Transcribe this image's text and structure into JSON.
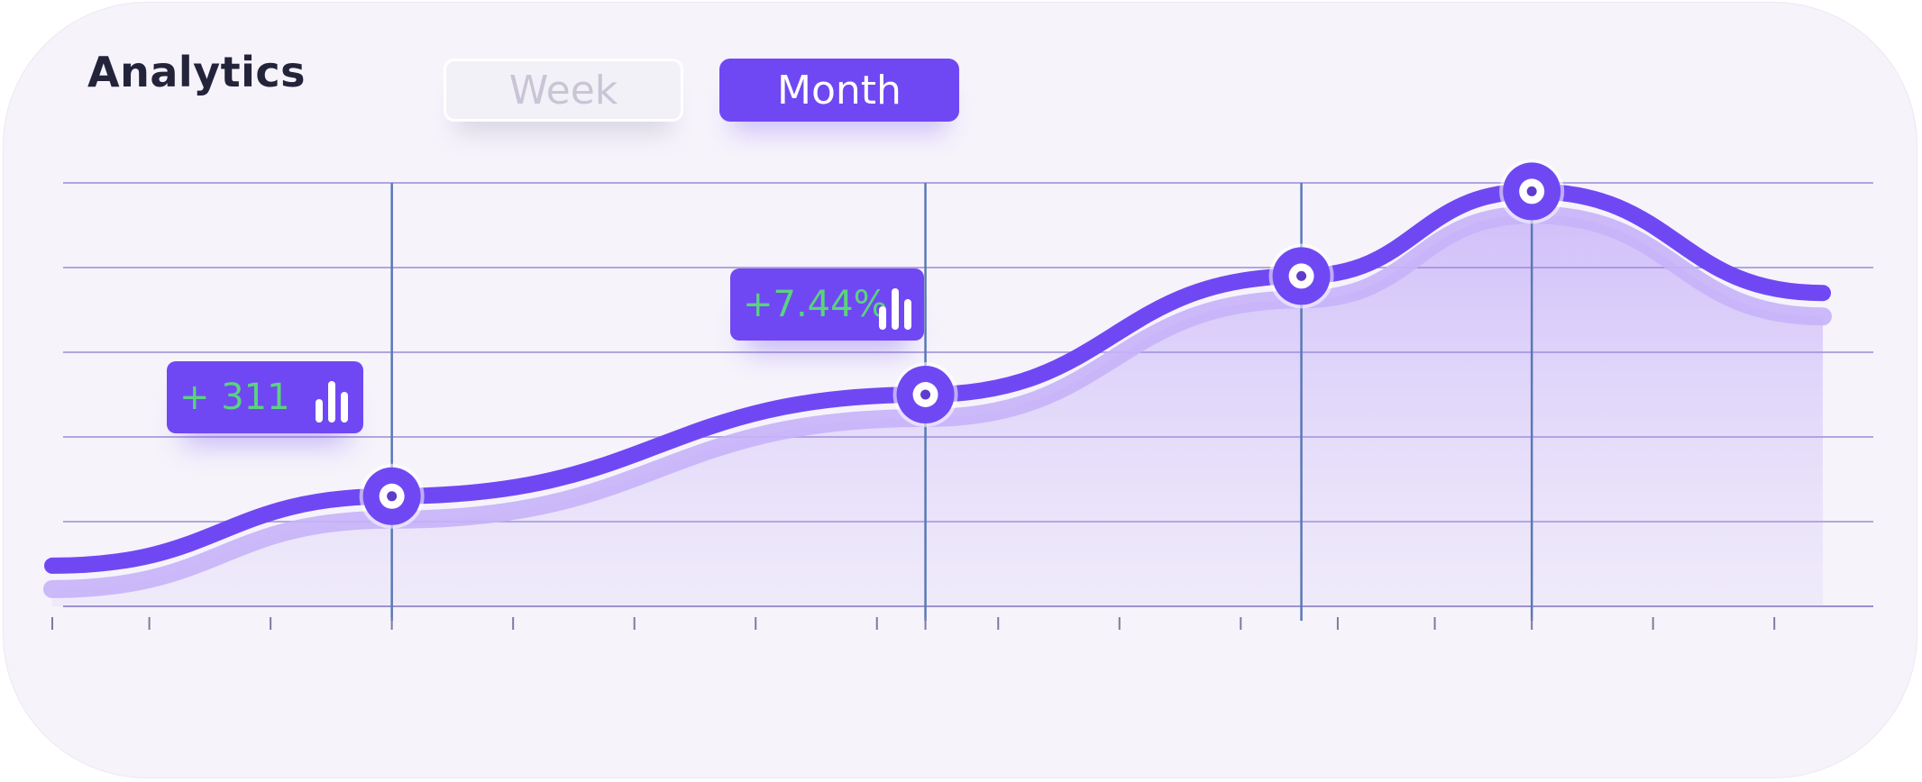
{
  "header": {
    "title": "Analytics"
  },
  "tabs": [
    {
      "label": "Week",
      "active": false
    },
    {
      "label": "Month",
      "active": true
    }
  ],
  "badges": [
    {
      "text": "+ 311",
      "icon": "bar-chart-icon"
    },
    {
      "text": "+7.44%",
      "icon": "bar-chart-icon"
    }
  ],
  "colors": {
    "accent": "#7048f3",
    "positive_text": "#59d47c",
    "background": "#f6f3fb",
    "grid": "#a89ed3",
    "marker_line": "#5a78b6"
  },
  "chart_data": {
    "type": "area",
    "title": "",
    "xlabel": "",
    "ylabel": "",
    "x": [
      0,
      2.8,
      7.2,
      10.3,
      12.2,
      14.6
    ],
    "y": [
      0.48,
      1.3,
      2.5,
      3.9,
      4.9,
      3.7
    ],
    "x_range": [
      0,
      14.6
    ],
    "ylim": [
      0,
      5
    ],
    "grid": true,
    "markers": [
      2.8,
      7.2,
      10.3,
      12.2
    ],
    "x_ticks": [
      0,
      0.8,
      1.8,
      2.8,
      3.8,
      4.8,
      5.8,
      6.8,
      7.2,
      7.8,
      8.8,
      9.8,
      10.6,
      11.4,
      12.2,
      13.2,
      14.2
    ],
    "tick_labels_visible": false,
    "legend": "none"
  }
}
